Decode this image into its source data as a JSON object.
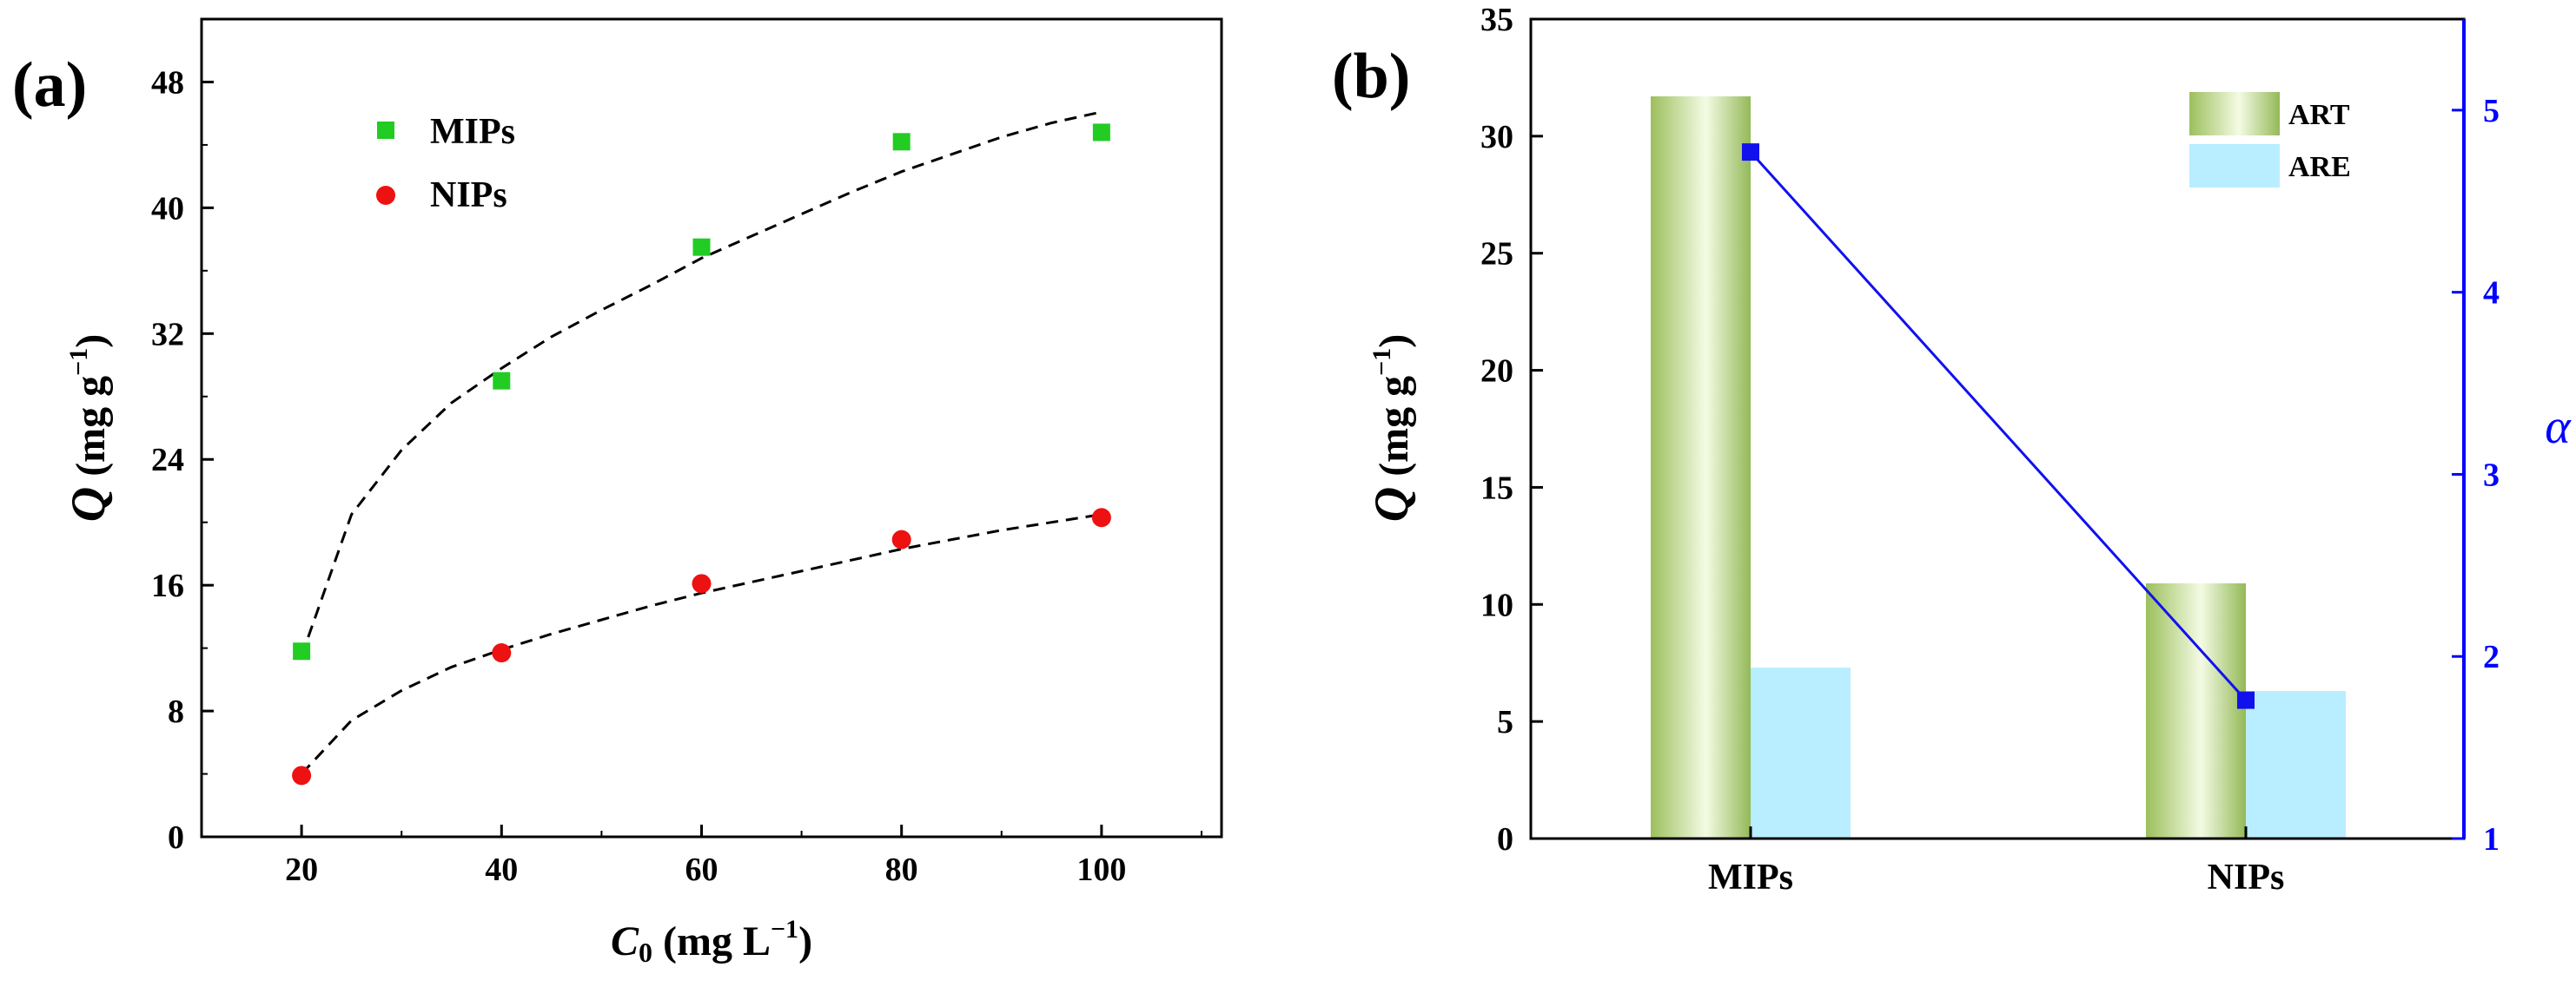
{
  "colors": {
    "mips_marker": "#22cc22",
    "nips_marker": "#ee1111",
    "fit_line": "#000000",
    "art_bar": "#a6c86a",
    "are_bar": "#b8eeff",
    "alpha_line": "#1111ee",
    "right_axis": "#0000ff"
  },
  "chart_data": [
    {
      "type": "scatter",
      "panel_label": "(a)",
      "xlabel": {
        "main": "C",
        "sub": "0",
        "unit": " (mg L",
        "exp": "−1",
        "close": ")"
      },
      "ylabel": {
        "main": "Q",
        "unit": " (mg g",
        "exp": "−1",
        "close": ")"
      },
      "xlim": [
        10,
        112
      ],
      "ylim": [
        0,
        52
      ],
      "xticks": [
        20,
        40,
        60,
        80,
        100
      ],
      "yticks": [
        0,
        8,
        16,
        24,
        32,
        40,
        48
      ],
      "legend_position": "top-left",
      "series": [
        {
          "name": "MIPs",
          "marker": "square",
          "x": [
            20,
            40,
            60,
            80,
            100
          ],
          "y": [
            11.8,
            29.0,
            37.5,
            44.2,
            44.8
          ]
        },
        {
          "name": "NIPs",
          "marker": "circle",
          "x": [
            20,
            40,
            60,
            80,
            100
          ],
          "y": [
            3.9,
            11.7,
            16.1,
            18.9,
            20.3
          ]
        }
      ],
      "fit_curves": [
        {
          "x": [
            20,
            25,
            30,
            35,
            40,
            45,
            50,
            55,
            60,
            65,
            70,
            75,
            80,
            85,
            90,
            95,
            100
          ],
          "y": [
            11.5,
            20.5,
            24.6,
            27.6,
            29.8,
            31.8,
            33.5,
            35.1,
            36.8,
            38.2,
            39.6,
            41.0,
            42.3,
            43.4,
            44.5,
            45.4,
            46.1
          ]
        },
        {
          "x": [
            20,
            25,
            30,
            35,
            40,
            45,
            50,
            55,
            60,
            65,
            70,
            75,
            80,
            85,
            90,
            95,
            100
          ],
          "y": [
            4.0,
            7.4,
            9.3,
            10.8,
            11.9,
            12.9,
            13.8,
            14.7,
            15.5,
            16.2,
            16.9,
            17.6,
            18.3,
            18.9,
            19.5,
            20.0,
            20.5
          ]
        }
      ]
    },
    {
      "type": "bar",
      "panel_label": "(b)",
      "categories": [
        "MIPs",
        "NIPs"
      ],
      "ylabel": {
        "main": "Q",
        "unit": " (mg g",
        "exp": "−1",
        "close": ")"
      },
      "y2label": "α",
      "ylim": [
        0,
        35
      ],
      "yticks": [
        0,
        5,
        10,
        15,
        20,
        25,
        30,
        35
      ],
      "y2lim": [
        1,
        5.5
      ],
      "y2ticks": [
        1,
        2,
        3,
        4,
        5
      ],
      "legend_position": "top-right",
      "series": [
        {
          "name": "ART",
          "values": [
            31.7,
            10.9
          ]
        },
        {
          "name": "ARE",
          "values": [
            7.3,
            6.3
          ]
        }
      ],
      "line_series": {
        "axis": "right",
        "values": [
          4.77,
          1.76
        ]
      }
    }
  ]
}
